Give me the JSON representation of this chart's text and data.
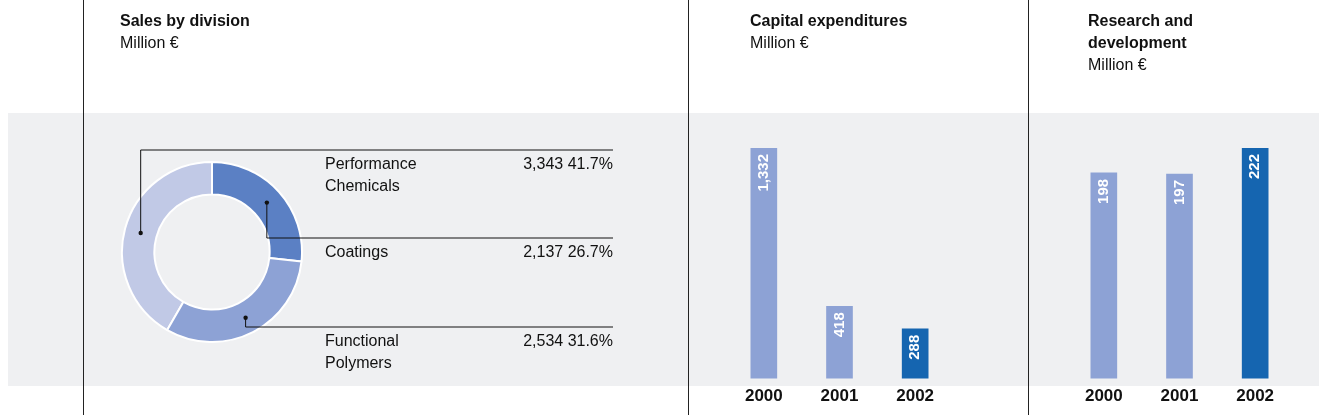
{
  "chart_data": [
    {
      "type": "donut",
      "title": "Sales by division",
      "subtitle": "Million €",
      "categories": [
        "Performance Chemicals",
        "Coatings",
        "Functional Polymers"
      ],
      "values": [
        3343,
        2137,
        2534
      ],
      "value_labels": [
        "3,343 41.7%",
        "2,137 26.7%",
        "2,534 31.6%"
      ],
      "colors": [
        "#c1c9e6",
        "#5b80c4",
        "#8da2d5"
      ],
      "legend": false
    },
    {
      "type": "bar",
      "title": "Capital expenditures",
      "subtitle": "Million €",
      "categories": [
        "2000",
        "2001",
        "2002"
      ],
      "values": [
        1332,
        418,
        288
      ],
      "value_labels": [
        "1,332",
        "418",
        "288"
      ],
      "colors": [
        "#8da2d5",
        "#8da2d5",
        "#1565b0"
      ],
      "grid": false,
      "legend": false
    },
    {
      "type": "bar",
      "title": "Research and development",
      "subtitle": "Million €",
      "categories": [
        "2000",
        "2001",
        "2002"
      ],
      "values": [
        198,
        197,
        222
      ],
      "value_labels": [
        "198",
        "197",
        "222"
      ],
      "colors": [
        "#8da2d5",
        "#8da2d5",
        "#1565b0"
      ],
      "grid": false,
      "legend": false
    }
  ]
}
